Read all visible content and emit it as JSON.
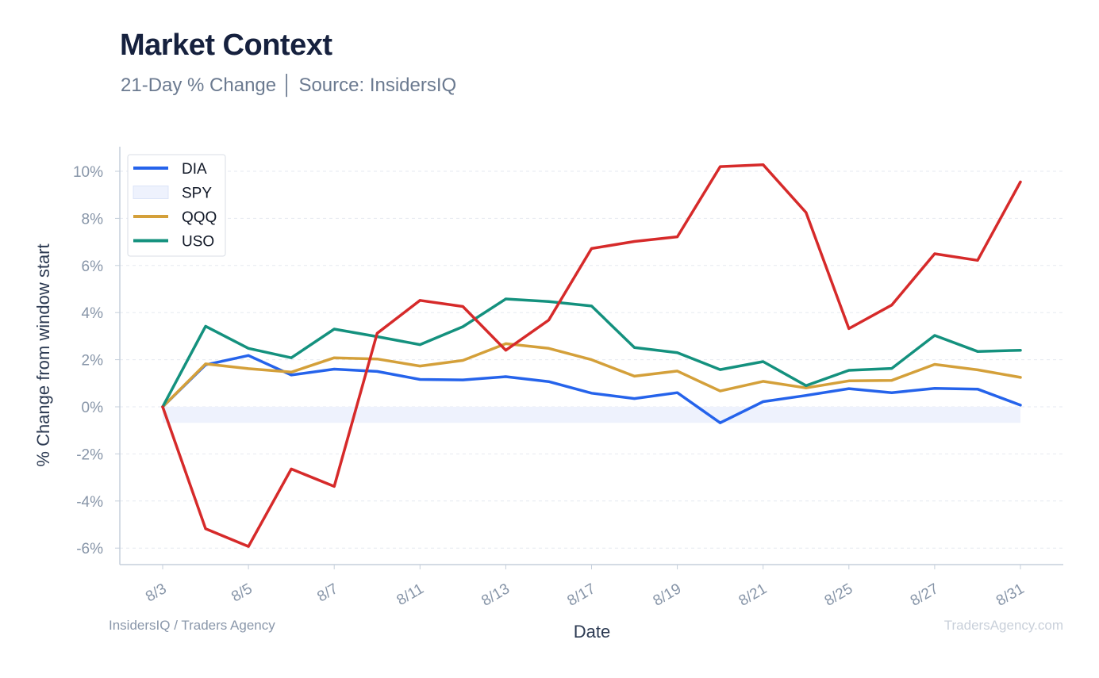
{
  "header": {
    "title": "Market Context",
    "subtitle": "21-Day % Change │ Source: InsidersIQ"
  },
  "footer": {
    "left": "InsidersIQ / Traders Agency",
    "right": "TradersAgency.com"
  },
  "colors": {
    "DIA": "#2563eb",
    "SPY_fill": "#eef2fd",
    "QQQ": "#d4a03a",
    "USO": "#14917e",
    "red_series": "#d62a2a"
  },
  "chart_data": {
    "type": "line",
    "xlabel": "Date",
    "ylabel": "% Change from window start",
    "x_tick_labels": [
      "8/3",
      "8/5",
      "8/7",
      "8/11",
      "8/13",
      "8/17",
      "8/19",
      "8/21",
      "8/25",
      "8/27",
      "8/31"
    ],
    "y_ticks": [
      -6,
      -4,
      -2,
      0,
      2,
      4,
      6,
      8,
      10
    ],
    "y_tick_labels": [
      "-6%",
      "-4%",
      "-2%",
      "0%",
      "2%",
      "4%",
      "6%",
      "8%",
      "10%"
    ],
    "ylim": [
      -6.7,
      11.0
    ],
    "grid": true,
    "legend_position": "top-left",
    "n_points": 21,
    "series": [
      {
        "name": "DIA",
        "kind": "line",
        "values": [
          0,
          1.78,
          2.18,
          1.35,
          1.6,
          1.5,
          1.16,
          1.14,
          1.28,
          1.07,
          0.58,
          0.35,
          0.6,
          -0.68,
          0.22,
          0.48,
          0.77,
          0.6,
          0.78,
          0.75,
          0.07
        ]
      },
      {
        "name": "SPY",
        "kind": "band",
        "values": [
          -0.68,
          -0.68,
          -0.68,
          -0.68,
          -0.68,
          -0.68,
          -0.68,
          -0.68,
          -0.68,
          -0.68,
          -0.68,
          -0.68,
          -0.68,
          -0.68,
          -0.68,
          -0.68,
          -0.68,
          -0.68,
          -0.68,
          -0.68,
          -0.68
        ]
      },
      {
        "name": "QQQ",
        "kind": "line",
        "values": [
          0,
          1.82,
          1.62,
          1.47,
          2.08,
          2.03,
          1.73,
          1.97,
          2.68,
          2.48,
          2.0,
          1.3,
          1.52,
          0.67,
          1.08,
          0.8,
          1.1,
          1.12,
          1.8,
          1.57,
          1.25
        ]
      },
      {
        "name": "USO",
        "kind": "line",
        "values": [
          0,
          3.42,
          2.48,
          2.08,
          3.3,
          2.98,
          2.64,
          3.4,
          4.58,
          4.47,
          4.28,
          2.52,
          2.3,
          1.58,
          1.92,
          0.9,
          1.55,
          1.63,
          3.03,
          2.35,
          2.4
        ]
      },
      {
        "kind": "line",
        "values": [
          0,
          -5.18,
          -5.93,
          -2.64,
          -3.38,
          3.12,
          4.52,
          4.26,
          2.4,
          3.68,
          6.72,
          7.02,
          7.22,
          10.2,
          10.28,
          8.25,
          3.32,
          4.32,
          6.5,
          6.22,
          9.55
        ]
      }
    ]
  }
}
